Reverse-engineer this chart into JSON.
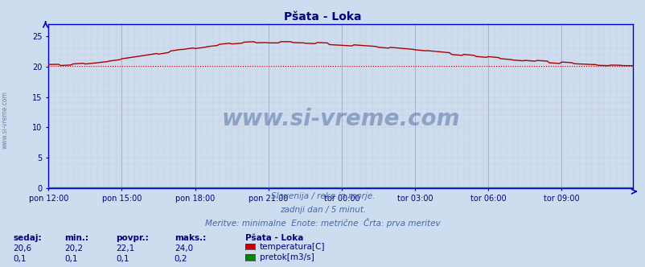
{
  "title": "Pšata - Loka",
  "title_color": "#000080",
  "bg_color": "#ccddf0",
  "plot_bg_color": "#ccddf0",
  "grid_color_major": "#aaaacc",
  "grid_color_minor": "#ddaaaa",
  "xlabel_color": "#000080",
  "axis_color": "#0000cc",
  "temp_color": "#aa0000",
  "flow_color": "#008800",
  "watermark_color": "#1a3a7a",
  "watermark_text": "www.si-vreme.com",
  "subtitle1": "Slovenija / reke in morje.",
  "subtitle2": "zadnji dan / 5 minut.",
  "subtitle3": "Meritve: minimalne  Enote: metrične  Črta: prva meritev",
  "subtitle_color": "#4466aa",
  "legend_title": "Pšata - Loka",
  "legend_title_color": "#000080",
  "legend_items": [
    "temperatura[C]",
    "pretok[m3/s]"
  ],
  "legend_colors": [
    "#cc0000",
    "#008800"
  ],
  "table_headers": [
    "sedaj:",
    "min.:",
    "povpr.:",
    "maks.:"
  ],
  "table_header_color": "#000080",
  "table_values": [
    [
      "20,6",
      "20,2",
      "22,1",
      "24,0"
    ],
    [
      "0,1",
      "0,1",
      "0,1",
      "0,2"
    ]
  ],
  "table_value_color": "#000080",
  "x_tick_labels": [
    "pon 12:00",
    "pon 15:00",
    "pon 18:00",
    "pon 21:00",
    "tor 00:00",
    "tor 03:00",
    "tor 06:00",
    "tor 09:00"
  ],
  "x_tick_positions": [
    0,
    36,
    72,
    108,
    144,
    180,
    216,
    252
  ],
  "n_points": 288,
  "ylim": [
    0,
    27
  ],
  "ytick_positions": [
    0,
    5,
    10,
    15,
    20,
    25
  ],
  "ytick_labels": [
    "0",
    "5",
    "10",
    "15",
    "20",
    "25"
  ],
  "dashed_line_value": 20.1,
  "dashed_line_color": "#cc0000",
  "temp_min": 20.2,
  "temp_max": 24.0,
  "temp_peak_index": 108,
  "flow_value": 0.1,
  "n_major_x": 8,
  "n_minor_x_per_major": 5
}
